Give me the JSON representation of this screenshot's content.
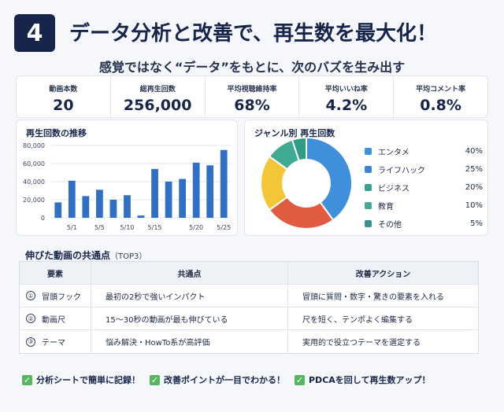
{
  "header": {
    "number": "4",
    "title": "データ分析と改善で、再生数を最大化！",
    "subtitle": "感覚ではなく“データ”をもとに、次のバズを生み出す"
  },
  "kpis": [
    {
      "label": "動画本数",
      "value": "20"
    },
    {
      "label": "総再生回数",
      "value": "256,000"
    },
    {
      "label": "平均視聴維持率",
      "value": "68%"
    },
    {
      "label": "平均いいね率",
      "value": "4.2%"
    },
    {
      "label": "平均コメント率",
      "value": "0.8%"
    }
  ],
  "chart_data": [
    {
      "type": "bar",
      "title": "再生回数の推移",
      "x_tick_labels": [
        "5/1",
        "5/5",
        "5/10",
        "5/15",
        "5/20",
        "5/25"
      ],
      "y_tick_labels": [
        "0",
        "20,000",
        "40,000",
        "60,000",
        "80,000"
      ],
      "ylim": [
        0,
        80000
      ],
      "values": [
        17000,
        41000,
        24000,
        31000,
        20000,
        25000,
        2500,
        54000,
        40000,
        43000,
        61000,
        58000,
        75000
      ],
      "bar_color": "#2f6fc6",
      "grid": true
    },
    {
      "type": "pie",
      "title": "ジャンル別 再生回数",
      "categories": [
        "エンタメ",
        "ライフハック",
        "ビジネス",
        "教育",
        "その他"
      ],
      "values": [
        40,
        25,
        20,
        10,
        5
      ],
      "labels": [
        "40%",
        "25%",
        "20%",
        "10%",
        "5%"
      ],
      "colors": [
        "#3f8fdc",
        "#e05b3f",
        "#f3c638",
        "#3eaa91",
        "#2f9c86"
      ],
      "donut": true
    }
  ],
  "common_points": {
    "title": "伸びた動画の共通点",
    "suffix": "（TOP3）",
    "headers": [
      "要素",
      "共通点",
      "改善アクション"
    ],
    "rows": [
      {
        "mark": "①",
        "element": "冒頭フック",
        "point": "最初の2秒で強いインパクト",
        "action": "冒頭に質問・数字・驚きの要素を入れる"
      },
      {
        "mark": "②",
        "element": "動画尺",
        "point": "15〜30秒の動画が最も伸びている",
        "action": "尺を短く、テンポよく編集する"
      },
      {
        "mark": "③",
        "element": "テーマ",
        "point": "悩み解決・HowTo系が高評価",
        "action": "実用的で役立つテーマを選定する"
      }
    ]
  },
  "checks": [
    "分析シートで簡単に記録！",
    "改善ポイントが一目でわかる！",
    "PDCAを回して再生数アップ！"
  ]
}
